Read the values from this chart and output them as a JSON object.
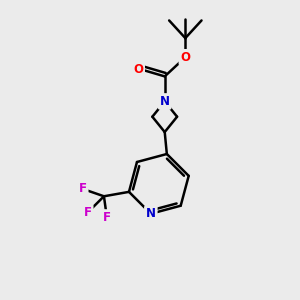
{
  "background_color": "#ebebeb",
  "bond_color": "#000000",
  "bond_width": 1.8,
  "atom_colors": {
    "N": "#0000cc",
    "O": "#ff0000",
    "F": "#cc00cc",
    "C": "#000000"
  },
  "figsize": [
    3.0,
    3.0
  ],
  "dpi": 100,
  "xlim": [
    0,
    10
  ],
  "ylim": [
    0,
    10
  ]
}
